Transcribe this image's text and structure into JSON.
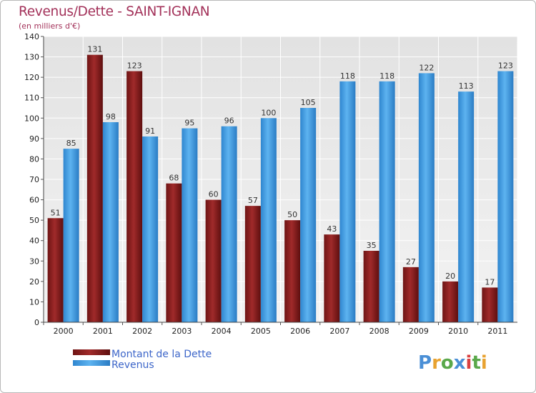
{
  "chart_data": {
    "type": "bar",
    "title": "Revenus/Dette - SAINT-IGNAN",
    "subtitle": "(en milliers d'€)",
    "categories": [
      "2000",
      "2001",
      "2002",
      "2003",
      "2004",
      "2005",
      "2006",
      "2007",
      "2008",
      "2009",
      "2010",
      "2011"
    ],
    "series": [
      {
        "name": "Montant de la Dette",
        "color": "#8b1c1c",
        "values": [
          51,
          131,
          123,
          68,
          60,
          57,
          50,
          43,
          35,
          27,
          20,
          17
        ]
      },
      {
        "name": "Revenus",
        "color": "#4aa3e6",
        "values": [
          85,
          98,
          91,
          95,
          96,
          100,
          105,
          118,
          118,
          122,
          113,
          123
        ]
      }
    ],
    "ylim": [
      0,
      140
    ],
    "yticks": [
      0,
      10,
      20,
      30,
      40,
      50,
      60,
      70,
      80,
      90,
      100,
      110,
      120,
      130,
      140
    ],
    "grid": true,
    "legend": "bottom-left"
  },
  "branding": {
    "logo": "Proxiti"
  }
}
